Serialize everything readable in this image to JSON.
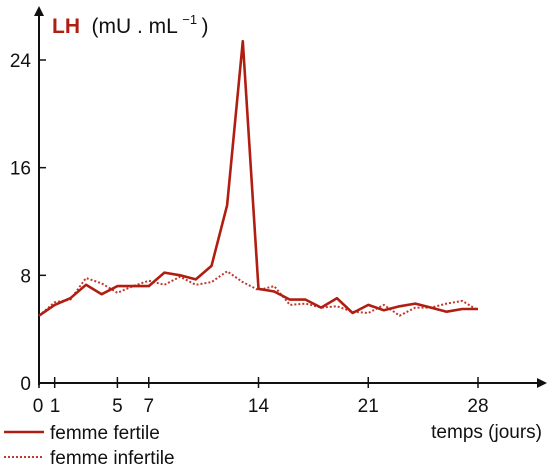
{
  "chart_data": {
    "type": "line",
    "title": {
      "main": "LH",
      "unit": "(mU . mL",
      "exponent": "−1",
      "close": ")"
    },
    "xlabel": "temps (jours)",
    "x_ticks": [
      "0",
      "1",
      "5",
      "7",
      "14",
      "21",
      "28"
    ],
    "y_ticks": [
      "0",
      "8",
      "16",
      "24"
    ],
    "xlim": [
      0,
      32
    ],
    "ylim": [
      0,
      27
    ],
    "colors": {
      "fertile": "#b01e12",
      "infertile": "#c0392b",
      "axis": "#111111"
    },
    "series": [
      {
        "name": "femme fertile",
        "style": "solid",
        "x": [
          0,
          1,
          2,
          3,
          4,
          5,
          6,
          7,
          8,
          9,
          10,
          11,
          12,
          13,
          14,
          15,
          16,
          17,
          18,
          19,
          20,
          21,
          22,
          23,
          24,
          25,
          26,
          27,
          28
        ],
        "values": [
          5,
          5.8,
          6.3,
          7.3,
          6.6,
          7.2,
          7.2,
          7.2,
          8.2,
          8.0,
          7.7,
          8.7,
          13.2,
          25.4,
          7.0,
          6.8,
          6.2,
          6.2,
          5.6,
          6.3,
          5.2,
          5.8,
          5.4,
          5.7,
          5.9,
          5.6,
          5.3,
          5.5,
          5.5
        ]
      },
      {
        "name": "femme infertile",
        "style": "dotted",
        "x": [
          0,
          1,
          2,
          3,
          4,
          5,
          6,
          7,
          8,
          9,
          10,
          11,
          12,
          13,
          14,
          15,
          16,
          17,
          18,
          19,
          20,
          21,
          22,
          23,
          24,
          25,
          26,
          27,
          28
        ],
        "values": [
          5,
          6.0,
          6.2,
          7.8,
          7.4,
          6.7,
          7.2,
          7.6,
          7.3,
          7.9,
          7.3,
          7.5,
          8.3,
          7.5,
          6.9,
          7.2,
          5.8,
          5.9,
          5.6,
          5.7,
          5.3,
          5.2,
          5.8,
          5.0,
          5.6,
          5.6,
          5.9,
          6.1,
          5.4
        ]
      }
    ]
  }
}
